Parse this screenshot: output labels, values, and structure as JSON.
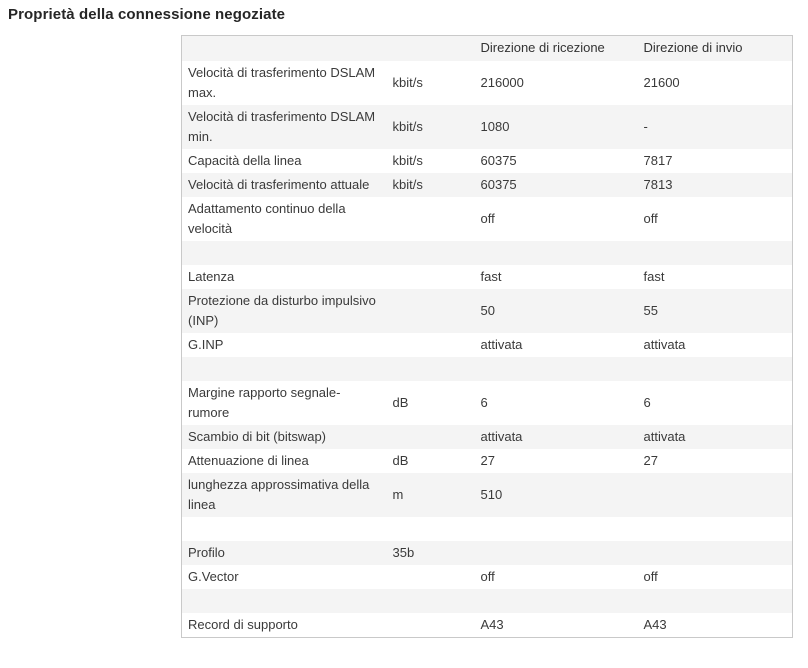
{
  "page_title": "Proprietà della connessione negoziate",
  "table": {
    "headers": [
      "",
      "",
      "Direzione di ricezione",
      "Direzione di invio"
    ],
    "rows": [
      {
        "label": "Velocità di trasferimento DSLAM max.",
        "unit": "kbit/s",
        "rx": "216000",
        "tx": "21600"
      },
      {
        "label": "Velocità di trasferimento DSLAM min.",
        "unit": "kbit/s",
        "rx": "1080",
        "tx": "-"
      },
      {
        "label": "Capacità della linea",
        "unit": "kbit/s",
        "rx": "60375",
        "tx": "7817"
      },
      {
        "label": "Velocità di trasferimento attuale",
        "unit": "kbit/s",
        "rx": "60375",
        "tx": "7813"
      },
      {
        "label": "Adattamento continuo della velocità",
        "unit": "",
        "rx": "off",
        "tx": "off"
      },
      {
        "label": "",
        "unit": "",
        "rx": "",
        "tx": ""
      },
      {
        "label": "Latenza",
        "unit": "",
        "rx": "fast",
        "tx": "fast"
      },
      {
        "label": "Protezione da disturbo impulsivo (INP)",
        "unit": "",
        "rx": "50",
        "tx": "55"
      },
      {
        "label": "G.INP",
        "unit": "",
        "rx": "attivata",
        "tx": "attivata"
      },
      {
        "label": "",
        "unit": "",
        "rx": "",
        "tx": ""
      },
      {
        "label": "Margine rapporto segnale-rumore",
        "unit": "dB",
        "rx": "6",
        "tx": "6"
      },
      {
        "label": "Scambio di bit (bitswap)",
        "unit": "",
        "rx": "attivata",
        "tx": "attivata"
      },
      {
        "label": "Attenuazione di linea",
        "unit": "dB",
        "rx": "27",
        "tx": "27"
      },
      {
        "label": "lunghezza approssimativa della linea",
        "unit": "m",
        "rx": "510",
        "tx": ""
      },
      {
        "label": "",
        "unit": "",
        "rx": "",
        "tx": ""
      },
      {
        "label": "Profilo",
        "unit": "35b",
        "rx": "",
        "tx": ""
      },
      {
        "label": "G.Vector",
        "unit": "",
        "rx": "off",
        "tx": "off"
      },
      {
        "label": "",
        "unit": "",
        "rx": "",
        "tx": ""
      },
      {
        "label": "Record di supporto",
        "unit": "",
        "rx": "A43",
        "tx": "A43"
      }
    ]
  },
  "colors": {
    "stripe": "#f4f4f4",
    "border": "#c9c9c9",
    "text": "#3a3a3a",
    "title": "#262626"
  }
}
